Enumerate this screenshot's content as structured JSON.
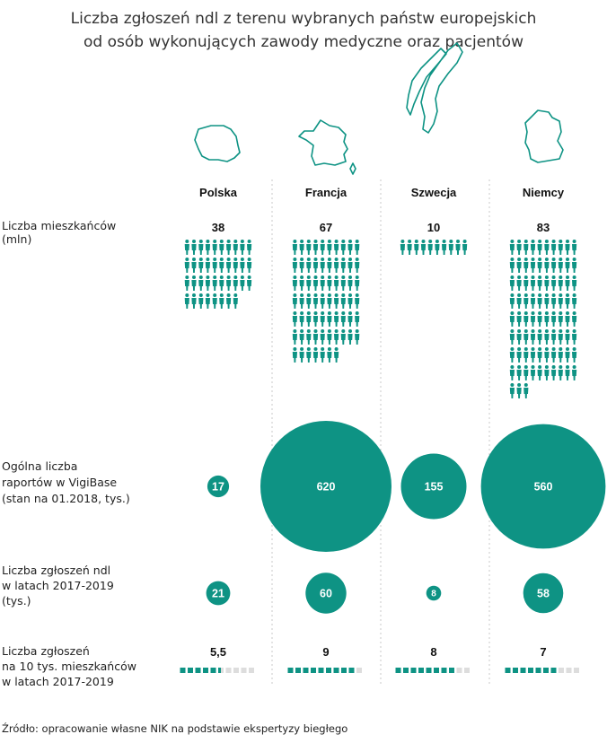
{
  "title_line1": "Liczba zgłoszeń ndl z terenu wybranych państw europejskich",
  "title_line2": "od osób wykonujących zawody medyczne oraz pacjentów",
  "source_label": "Źródło:",
  "source_text": "opracowanie własne NIK na podstawie ekspertyzy biegłego",
  "colors": {
    "accent": "#0e9384",
    "grey_square": "#dddddd",
    "divider": "#c9c9c9"
  },
  "chart_data": {
    "type": "table",
    "countries": [
      {
        "name": "Polska",
        "map_icon": "poland-map-icon"
      },
      {
        "name": "Francja",
        "map_icon": "france-map-icon"
      },
      {
        "name": "Szwecja",
        "map_icon": "sweden-map-icon"
      },
      {
        "name": "Niemcy",
        "map_icon": "germany-map-icon"
      }
    ],
    "rows": [
      {
        "key": "population",
        "label_lines": [
          "Liczba mieszkańców",
          "(mln)"
        ],
        "display": "pictogram",
        "values": [
          38,
          67,
          10,
          83
        ],
        "value_labels": [
          "38",
          "67",
          "10",
          "83"
        ]
      },
      {
        "key": "vigibase",
        "label_lines": [
          "Ogólna liczba",
          "raportów w VigiBase",
          "(stan na 01.2018, tys.)"
        ],
        "display": "bubble",
        "values": [
          17,
          620,
          155,
          560
        ],
        "value_labels": [
          "17",
          "620",
          "155",
          "560"
        ]
      },
      {
        "key": "reports",
        "label_lines": [
          "Liczba zgłoszeń ndl",
          "w latach 2017-2019",
          "(tys.)"
        ],
        "display": "bubble",
        "values": [
          21,
          60,
          8,
          58
        ],
        "value_labels": [
          "21",
          "60",
          "8",
          "58"
        ]
      },
      {
        "key": "per_capita",
        "label_lines": [
          "Liczba zgłoszeń",
          "na 10 tys. mieszkańców",
          "w latach 2017-2019"
        ],
        "display": "squares",
        "scale_max": 10,
        "values": [
          5.5,
          9,
          8,
          7
        ],
        "value_labels": [
          "5,5",
          "9",
          "8",
          "7"
        ]
      }
    ]
  }
}
